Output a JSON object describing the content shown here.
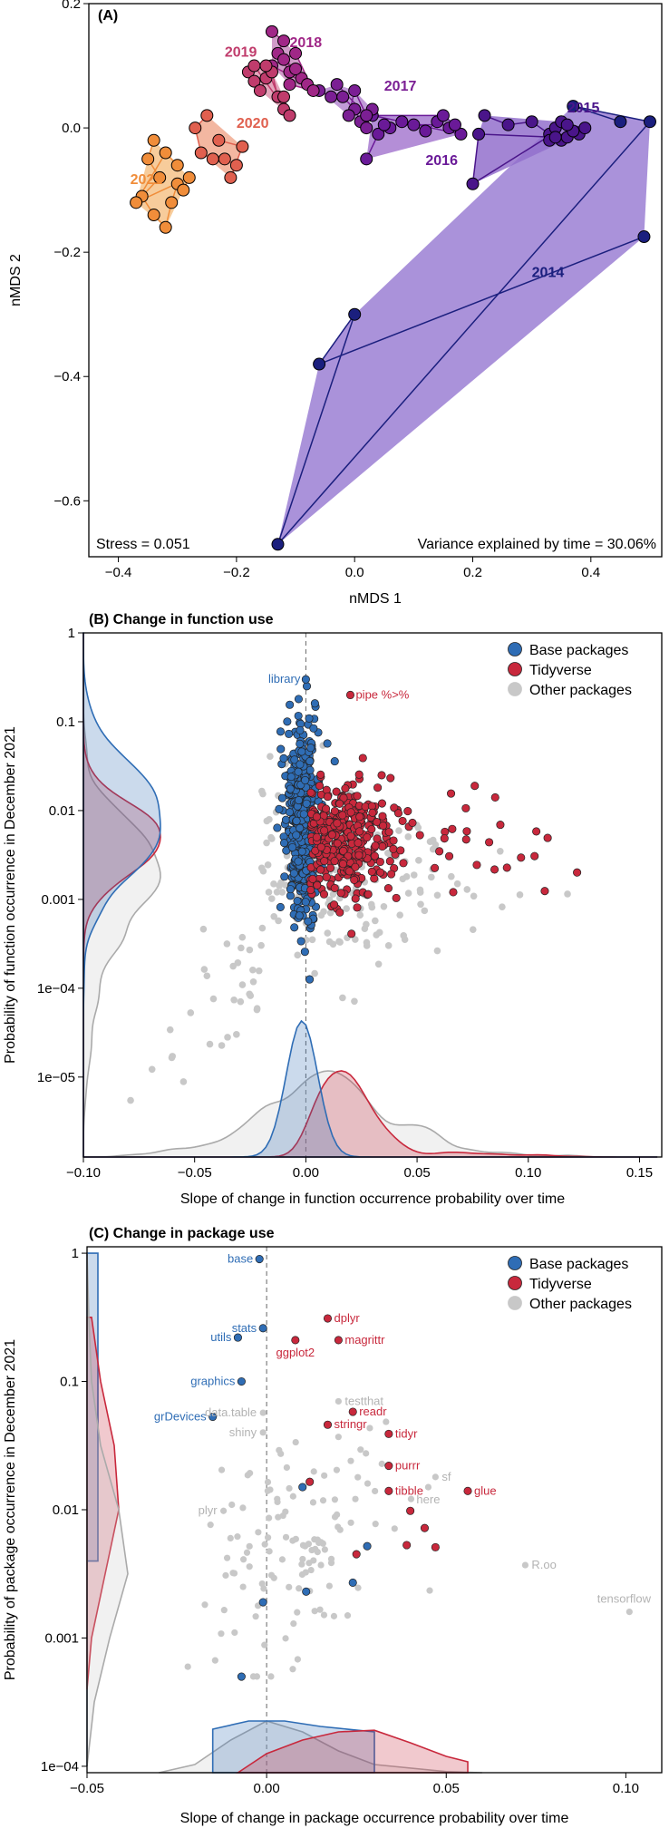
{
  "colors": {
    "base": "#2f6db5",
    "tidy": "#c8283c",
    "other": "#c8c8c8",
    "hull_2014": "#9b7fd4"
  },
  "legend": {
    "items": [
      {
        "label": "Base packages",
        "key": "base"
      },
      {
        "label": "Tidyverse",
        "key": "tidy"
      },
      {
        "label": "Other packages",
        "key": "other"
      }
    ]
  },
  "panelA": {
    "title": "(A)",
    "xlabel": "nMDS 1",
    "ylabel": "nMDS 2",
    "stress": "Stress = 0.051",
    "variance": "Variance explained by time = 30.06%"
  },
  "panelB": {
    "title": "(B) Change in function use",
    "xlabel": "Slope of change in function occurrence probability over time",
    "ylabel": "Probability of function occurrence in December 2021"
  },
  "panelC": {
    "title": "(C) Change in package use",
    "xlabel": "Slope of change in package occurrence probability over time",
    "ylabel": "Probability of package occurrence in December 2021"
  },
  "chart_data": [
    {
      "type": "scatter",
      "title": "(A)",
      "xlabel": "nMDS 1",
      "ylabel": "nMDS 2",
      "xlim": [
        -0.45,
        0.52
      ],
      "ylim": [
        -0.69,
        0.2
      ],
      "xticks": [
        -0.4,
        -0.2,
        0.0,
        0.2,
        0.4
      ],
      "xtick_labels": [
        "−0.4",
        "−0.2",
        "0.0",
        "0.2",
        "0.4"
      ],
      "yticks": [
        -0.6,
        -0.4,
        -0.2,
        0.0,
        0.2
      ],
      "ytick_labels": [
        "−0.6",
        "−0.4",
        "−0.2",
        "0.0",
        "0.2"
      ],
      "series": [
        {
          "name": "2014",
          "color": "#1b1f7e",
          "fill": "#9b7fd4",
          "label_at": [
            0.3,
            -0.24
          ],
          "label_color": "#1b1f7e",
          "points": [
            [
              0.49,
              -0.175
            ],
            [
              -0.06,
              -0.38
            ],
            [
              0.0,
              -0.3
            ],
            [
              -0.13,
              -0.67
            ],
            [
              0.5,
              0.01
            ],
            [
              0.37,
              0.035
            ],
            [
              0.45,
              0.01
            ]
          ]
        },
        {
          "name": "2015",
          "color": "#4a158a",
          "fill": "#9370cc",
          "label_at": [
            0.36,
            0.025
          ],
          "label_color": "#4a158a",
          "points": [
            [
              0.22,
              0.02
            ],
            [
              0.26,
              0.005
            ],
            [
              0.3,
              0.01
            ],
            [
              0.33,
              -0.01
            ],
            [
              0.34,
              0.0
            ],
            [
              0.35,
              -0.02
            ],
            [
              0.36,
              -0.015
            ],
            [
              0.38,
              -0.01
            ],
            [
              0.35,
              0.01
            ],
            [
              0.37,
              -0.005
            ],
            [
              0.33,
              -0.02
            ],
            [
              0.39,
              0.0
            ],
            [
              0.36,
              0.005
            ],
            [
              0.2,
              -0.09
            ],
            [
              0.21,
              -0.01
            ],
            [
              0.34,
              -0.015
            ]
          ]
        },
        {
          "name": "2016",
          "color": "#6a1a98",
          "fill": "#a77ad0",
          "label_at": [
            0.12,
            -0.06
          ],
          "label_color": "#6a1a98",
          "points": [
            [
              0.02,
              -0.05
            ],
            [
              0.04,
              -0.01
            ],
            [
              0.06,
              0.0
            ],
            [
              0.08,
              0.01
            ],
            [
              0.1,
              0.005
            ],
            [
              0.12,
              -0.005
            ],
            [
              0.14,
              0.01
            ],
            [
              0.16,
              0.0
            ],
            [
              0.18,
              -0.01
            ],
            [
              0.03,
              0.02
            ],
            [
              0.15,
              0.02
            ],
            [
              0.17,
              0.005
            ],
            [
              0.05,
              0.005
            ]
          ]
        },
        {
          "name": "2017",
          "color": "#7b1f94",
          "fill": "#b58ad0",
          "label_at": [
            0.05,
            0.06
          ],
          "label_color": "#7b1f94",
          "points": [
            [
              -0.06,
              0.06
            ],
            [
              -0.04,
              0.05
            ],
            [
              -0.02,
              0.05
            ],
            [
              0.0,
              0.03
            ],
            [
              0.01,
              0.01
            ],
            [
              0.02,
              0.0
            ],
            [
              0.03,
              0.03
            ],
            [
              -0.01,
              0.02
            ],
            [
              0.0,
              0.06
            ],
            [
              0.02,
              0.02
            ],
            [
              -0.03,
              0.07
            ]
          ]
        },
        {
          "name": "2018",
          "color": "#a02787",
          "fill": "#c98ac0",
          "label_at": [
            -0.11,
            0.13
          ],
          "label_color": "#a02787",
          "points": [
            [
              -0.14,
              0.155
            ],
            [
              -0.12,
              0.14
            ],
            [
              -0.13,
              0.12
            ],
            [
              -0.11,
              0.09
            ],
            [
              -0.09,
              0.08
            ],
            [
              -0.12,
              0.11
            ],
            [
              -0.1,
              0.095
            ],
            [
              -0.08,
              0.07
            ],
            [
              -0.14,
              0.1
            ],
            [
              -0.1,
              0.12
            ],
            [
              -0.07,
              0.06
            ],
            [
              -0.11,
              0.07
            ]
          ]
        },
        {
          "name": "2019",
          "color": "#c03c6c",
          "fill": "#df97b0",
          "label_at": [
            -0.22,
            0.115
          ],
          "label_color": "#c03c6c",
          "points": [
            [
              -0.18,
              0.09
            ],
            [
              -0.17,
              0.075
            ],
            [
              -0.16,
              0.06
            ],
            [
              -0.15,
              0.08
            ],
            [
              -0.14,
              0.09
            ],
            [
              -0.13,
              0.05
            ],
            [
              -0.12,
              0.03
            ],
            [
              -0.15,
              0.1
            ],
            [
              -0.17,
              0.1
            ],
            [
              -0.11,
              0.02
            ],
            [
              -0.12,
              0.05
            ]
          ]
        },
        {
          "name": "2020",
          "color": "#e0604f",
          "fill": "#f1aa90",
          "label_at": [
            -0.2,
            0.0
          ],
          "label_color": "#e0604f",
          "points": [
            [
              -0.25,
              0.02
            ],
            [
              -0.27,
              0.0
            ],
            [
              -0.26,
              -0.04
            ],
            [
              -0.24,
              -0.05
            ],
            [
              -0.22,
              -0.05
            ],
            [
              -0.2,
              -0.06
            ],
            [
              -0.21,
              -0.08
            ],
            [
              -0.19,
              -0.03
            ],
            [
              -0.23,
              -0.02
            ]
          ]
        },
        {
          "name": "2021",
          "color": "#f08d3a",
          "fill": "#f6c38a",
          "label_at": [
            -0.38,
            -0.09
          ],
          "label_color": "#f08d3a",
          "points": [
            [
              -0.34,
              -0.02
            ],
            [
              -0.35,
              -0.05
            ],
            [
              -0.33,
              -0.08
            ],
            [
              -0.36,
              -0.11
            ],
            [
              -0.34,
              -0.14
            ],
            [
              -0.32,
              -0.16
            ],
            [
              -0.31,
              -0.12
            ],
            [
              -0.3,
              -0.09
            ],
            [
              -0.29,
              -0.1
            ],
            [
              -0.28,
              -0.08
            ],
            [
              -0.37,
              -0.12
            ],
            [
              -0.32,
              -0.04
            ],
            [
              -0.3,
              -0.06
            ]
          ]
        }
      ]
    },
    {
      "type": "scatter",
      "title": "(B) Change in function use",
      "xlabel": "Slope of change in function occurrence probability over time",
      "ylabel": "Probability of function occurrence in December 2021",
      "xlim": [
        -0.1,
        0.16
      ],
      "ylim_log10": [
        -5.9,
        0.0
      ],
      "xticks": [
        -0.1,
        -0.05,
        0.0,
        0.05,
        0.1,
        0.15
      ],
      "xtick_labels": [
        "−0.10",
        "−0.05",
        "0.00",
        "0.05",
        "0.10",
        "0.15"
      ],
      "yticks_log10": [
        0,
        -1,
        -2,
        -3,
        -4,
        -5
      ],
      "ytick_labels": [
        "1",
        "0.1",
        "0.01",
        "0.001",
        "1e−04",
        "1e−05"
      ],
      "labels": [
        {
          "text": "library",
          "x": 0.0,
          "y": 0.3,
          "group": "base"
        },
        {
          "text": "pipe %>%",
          "x": 0.02,
          "y": 0.2,
          "group": "tidy"
        }
      ],
      "point_counts": {
        "base": 460,
        "tidy": 360,
        "other": 220
      },
      "group_stats": {
        "base": {
          "x_mean": -0.002,
          "x_sd": 0.004,
          "logy_mean": -2.1,
          "logy_sd": 0.55
        },
        "tidy": {
          "x_mean": 0.02,
          "x_sd": 0.012,
          "logy_mean": -2.35,
          "logy_sd": 0.32
        },
        "other": {
          "x_mean": 0.012,
          "x_sd": 0.025,
          "logy_mean": -2.7,
          "logy_sd": 0.55
        }
      }
    },
    {
      "type": "scatter",
      "title": "(C) Change in package use",
      "xlabel": "Slope of change in package occurrence probability over time",
      "ylabel": "Probability of package occurrence in December 2021",
      "xlim": [
        -0.05,
        0.11
      ],
      "ylim_log10": [
        -4.05,
        0.05
      ],
      "xticks": [
        -0.05,
        0.0,
        0.05,
        0.1
      ],
      "xtick_labels": [
        "−0.05",
        "0.00",
        "0.05",
        "0.10"
      ],
      "yticks_log10": [
        0,
        -1,
        -2,
        -3,
        -4
      ],
      "ytick_labels": [
        "1",
        "0.1",
        "0.01",
        "0.001",
        "1e−04"
      ],
      "labeled_points": [
        {
          "text": "base",
          "x": -0.002,
          "y": 0.9,
          "group": "base",
          "side": "left"
        },
        {
          "text": "stats",
          "x": -0.001,
          "y": 0.26,
          "group": "base",
          "side": "left"
        },
        {
          "text": "utils",
          "x": -0.008,
          "y": 0.22,
          "group": "base",
          "side": "left"
        },
        {
          "text": "graphics",
          "x": -0.007,
          "y": 0.1,
          "group": "base",
          "side": "left"
        },
        {
          "text": "grDevices",
          "x": -0.015,
          "y": 0.053,
          "group": "base",
          "side": "left"
        },
        {
          "text": "dplyr",
          "x": 0.017,
          "y": 0.31,
          "group": "tidy",
          "side": "right"
        },
        {
          "text": "magrittr",
          "x": 0.02,
          "y": 0.21,
          "group": "tidy",
          "side": "right"
        },
        {
          "text": "ggplot2",
          "x": 0.008,
          "y": 0.21,
          "group": "tidy",
          "side": "below"
        },
        {
          "text": "readr",
          "x": 0.024,
          "y": 0.058,
          "group": "tidy",
          "side": "right"
        },
        {
          "text": "stringr",
          "x": 0.017,
          "y": 0.046,
          "group": "tidy",
          "side": "right"
        },
        {
          "text": "tidyr",
          "x": 0.034,
          "y": 0.039,
          "group": "tidy",
          "side": "right"
        },
        {
          "text": "purrr",
          "x": 0.034,
          "y": 0.022,
          "group": "tidy",
          "side": "right"
        },
        {
          "text": "tibble",
          "x": 0.034,
          "y": 0.014,
          "group": "tidy",
          "side": "right"
        },
        {
          "text": "glue",
          "x": 0.056,
          "y": 0.014,
          "group": "tidy",
          "side": "right"
        },
        {
          "text": "testthat",
          "x": 0.02,
          "y": 0.07,
          "group": "other",
          "side": "right"
        },
        {
          "text": "data.table",
          "x": -0.001,
          "y": 0.057,
          "group": "other",
          "side": "left"
        },
        {
          "text": "shiny",
          "x": -0.001,
          "y": 0.04,
          "group": "other",
          "side": "left"
        },
        {
          "text": "sf",
          "x": 0.047,
          "y": 0.018,
          "group": "other",
          "side": "right"
        },
        {
          "text": "here",
          "x": 0.045,
          "y": 0.015,
          "group": "other",
          "side": "below"
        },
        {
          "text": "plyr",
          "x": -0.012,
          "y": 0.0098,
          "group": "other",
          "side": "left"
        },
        {
          "text": "R.oo",
          "x": 0.072,
          "y": 0.0037,
          "group": "other",
          "side": "right"
        },
        {
          "text": "tensorflow",
          "x": 0.101,
          "y": 0.0016,
          "group": "other",
          "side": "above"
        }
      ],
      "unlabeled_points": {
        "base": [
          [
            0.01,
            0.015
          ],
          [
            0.028,
            0.0052
          ],
          [
            0.024,
            0.0027
          ],
          [
            0.011,
            0.0023
          ],
          [
            -0.001,
            0.0019
          ],
          [
            -0.007,
            0.0005
          ]
        ],
        "tidy": [
          [
            0.039,
            0.0053
          ],
          [
            0.04,
            0.0098
          ],
          [
            0.044,
            0.0072
          ],
          [
            0.047,
            0.0051
          ],
          [
            0.012,
            0.0165
          ],
          [
            0.025,
            0.0045
          ]
        ]
      },
      "other_point_count": 120,
      "other_stats": {
        "x_mean": 0.008,
        "x_sd": 0.012,
        "logy_mean": -2.4,
        "logy_sd": 0.45
      }
    }
  ]
}
